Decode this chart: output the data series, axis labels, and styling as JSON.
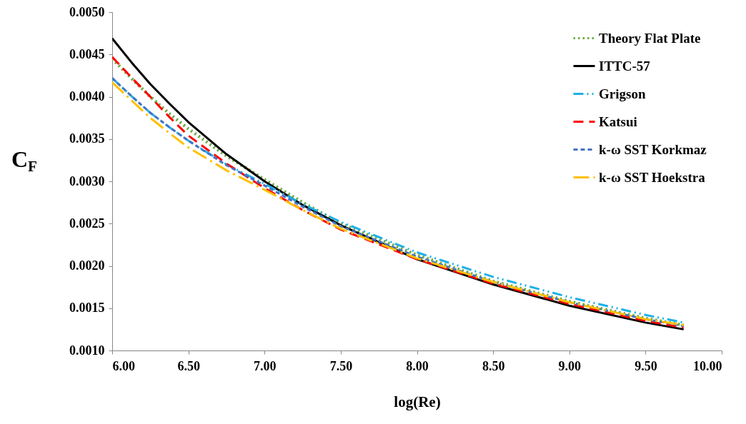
{
  "chart_data": {
    "type": "line",
    "xlabel": "log(Re)",
    "ylabel": "C$_{F}$",
    "x": [
      6.0,
      6.125,
      6.25,
      6.375,
      6.5,
      6.75,
      7.0,
      7.25,
      7.5,
      8.0,
      8.5,
      9.0,
      9.5,
      9.75
    ],
    "series": [
      {
        "name": "Theory Flat Plate",
        "color": "#70ad47",
        "line_style": "dotted",
        "values": [
          0.00445,
          0.00422,
          0.004,
          0.0038,
          0.00362,
          0.0033,
          0.00302,
          0.00275,
          0.0025,
          0.00213,
          0.00182,
          0.00158,
          0.00138,
          0.0013
        ]
      },
      {
        "name": "ITTC-57",
        "color": "#000000",
        "line_style": "solid",
        "values": [
          0.00469,
          0.00441,
          0.00415,
          0.00392,
          0.0037,
          0.00332,
          0.003,
          0.00272,
          0.00248,
          0.00208,
          0.00178,
          0.00153,
          0.00133,
          0.00125
        ]
      },
      {
        "name": "Grigson",
        "color": "#1fb0e6",
        "line_style": "dashed",
        "values": [
          0.00422,
          0.00401,
          0.00381,
          0.00364,
          0.00348,
          0.0032,
          0.00297,
          0.00273,
          0.00252,
          0.00216,
          0.00187,
          0.00163,
          0.00142,
          0.00133
        ]
      },
      {
        "name": "Katsui",
        "color": "#ff0000",
        "line_style": "dashed",
        "values": [
          0.00447,
          0.00423,
          0.004,
          0.00376,
          0.00354,
          0.00321,
          0.00292,
          0.00266,
          0.00243,
          0.00208,
          0.00179,
          0.00155,
          0.00135,
          0.00127
        ]
      },
      {
        "name": "k-ω SST Korkmaz",
        "color": "#4472c4",
        "line_style": "dashed",
        "values": [
          0.00422,
          0.00401,
          0.00381,
          0.00364,
          0.00348,
          0.00319,
          0.00295,
          0.0027,
          0.00247,
          0.00211,
          0.00181,
          0.00157,
          0.00137,
          0.00129
        ]
      },
      {
        "name": "k-ω SST Hoekstra",
        "color": "#ffc000",
        "line_style": "dashed",
        "values": [
          0.00417,
          0.00396,
          0.00375,
          0.00357,
          0.0034,
          0.00313,
          0.0029,
          0.00266,
          0.00244,
          0.00209,
          0.00181,
          0.00157,
          0.00137,
          0.0013
        ]
      }
    ],
    "xlim": [
      6.0,
      10.0
    ],
    "xticks": [
      {
        "value": 6.0,
        "label": "6.00"
      },
      {
        "value": 6.5,
        "label": "6.50"
      },
      {
        "value": 7.0,
        "label": "7.00"
      },
      {
        "value": 7.5,
        "label": "7.50"
      },
      {
        "value": 8.0,
        "label": "8.00"
      },
      {
        "value": 8.5,
        "label": "8.50"
      },
      {
        "value": 9.0,
        "label": "9.00"
      },
      {
        "value": 9.5,
        "label": "9.50"
      },
      {
        "value": 10.0,
        "label": "10.00"
      }
    ],
    "ylim": [
      0.001,
      0.005
    ],
    "yticks": [
      {
        "value": 0.001,
        "label": "0.0010"
      },
      {
        "value": 0.0015,
        "label": "0.0015"
      },
      {
        "value": 0.002,
        "label": "0.0020"
      },
      {
        "value": 0.0025,
        "label": "0.0025"
      },
      {
        "value": 0.003,
        "label": "0.0030"
      },
      {
        "value": 0.0035,
        "label": "0.0035"
      },
      {
        "value": 0.004,
        "label": "0.0040"
      },
      {
        "value": 0.0045,
        "label": "0.0045"
      },
      {
        "value": 0.005,
        "label": "0.0050"
      }
    ],
    "legend": "top right",
    "grid": false,
    "marker": "none"
  }
}
